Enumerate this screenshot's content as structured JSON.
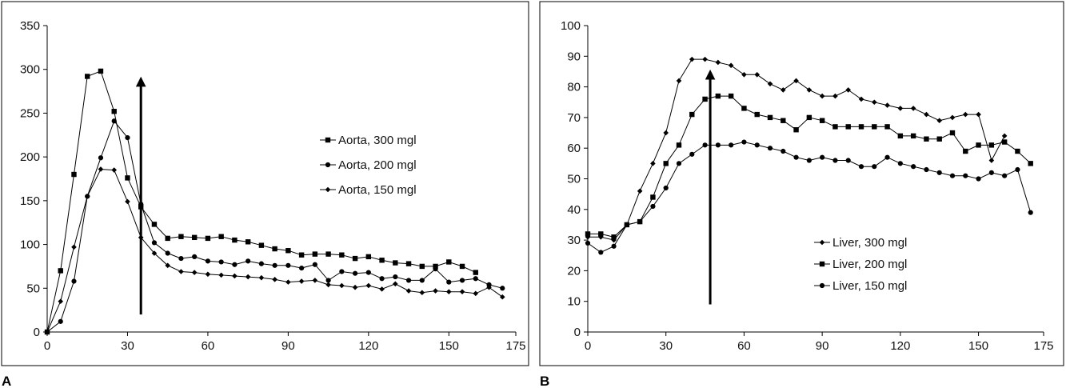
{
  "panels": [
    {
      "letter": "A",
      "chart_data": {
        "type": "line",
        "title": "",
        "xlabel": "",
        "ylabel": "",
        "xlim": [
          0,
          175
        ],
        "ylim": [
          0,
          350
        ],
        "xticks": [
          0,
          30,
          60,
          90,
          120,
          150,
          175
        ],
        "yticks": [
          0,
          50,
          100,
          150,
          200,
          250,
          300,
          350
        ],
        "grid": false,
        "legend_position": "right-center",
        "series": [
          {
            "name": "Aorta, 300 mgl",
            "marker": "square",
            "x": [
              0,
              5,
              10,
              15,
              20,
              25,
              30,
              35,
              40,
              45,
              50,
              55,
              60,
              65,
              70,
              75,
              80,
              85,
              90,
              95,
              100,
              105,
              110,
              115,
              120,
              125,
              130,
              135,
              140,
              145,
              150,
              155,
              160
            ],
            "y": [
              0,
              70,
              180,
              292,
              298,
              252,
              176,
              143,
              123,
              107,
              109,
              108,
              107,
              109,
              105,
              103,
              99,
              95,
              93,
              88,
              89,
              89,
              88,
              84,
              86,
              82,
              79,
              78,
              75,
              75,
              80,
              75,
              68
            ]
          },
          {
            "name": "Aorta, 200 mgl",
            "marker": "circle",
            "x": [
              0,
              5,
              10,
              15,
              20,
              25,
              30,
              35,
              40,
              45,
              50,
              55,
              60,
              65,
              70,
              75,
              80,
              85,
              90,
              95,
              100,
              105,
              110,
              115,
              120,
              125,
              130,
              135,
              140,
              145,
              150,
              155,
              160,
              165,
              170
            ],
            "y": [
              0,
              12,
              58,
              155,
              199,
              241,
              222,
              146,
              102,
              90,
              84,
              86,
              81,
              80,
              77,
              81,
              78,
              76,
              76,
              73,
              77,
              59,
              69,
              67,
              68,
              61,
              63,
              59,
              59,
              72,
              57,
              59,
              61,
              54,
              50
            ]
          },
          {
            "name": "Aorta, 150 mgl",
            "marker": "diamond",
            "x": [
              0,
              5,
              10,
              15,
              20,
              25,
              30,
              35,
              40,
              45,
              50,
              55,
              60,
              65,
              70,
              75,
              80,
              85,
              90,
              95,
              100,
              105,
              110,
              115,
              120,
              125,
              130,
              135,
              140,
              145,
              150,
              155,
              160,
              165,
              170
            ],
            "y": [
              0,
              35,
              97,
              155,
              186,
              185,
              149,
              108,
              90,
              76,
              69,
              68,
              66,
              65,
              64,
              63,
              62,
              60,
              57,
              58,
              59,
              54,
              53,
              51,
              53,
              49,
              55,
              47,
              45,
              47,
              46,
              46,
              44,
              51,
              40
            ]
          }
        ],
        "annotations": [
          {
            "type": "arrow",
            "x": 35,
            "y_from": 20,
            "y_to": 286
          }
        ]
      }
    },
    {
      "letter": "B",
      "chart_data": {
        "type": "line",
        "title": "",
        "xlabel": "",
        "ylabel": "",
        "xlim": [
          0,
          175
        ],
        "ylim": [
          0,
          100
        ],
        "xticks": [
          0,
          30,
          60,
          90,
          120,
          150,
          175
        ],
        "yticks": [
          0,
          10,
          20,
          30,
          40,
          50,
          60,
          70,
          80,
          90,
          100
        ],
        "grid": false,
        "legend_position": "bottom-right",
        "series": [
          {
            "name": "Liver, 300 mgl",
            "marker": "diamond",
            "x": [
              0,
              5,
              10,
              15,
              20,
              25,
              30,
              35,
              40,
              45,
              50,
              55,
              60,
              65,
              70,
              75,
              80,
              85,
              90,
              95,
              100,
              105,
              110,
              115,
              120,
              125,
              130,
              135,
              140,
              145,
              150,
              155,
              160
            ],
            "y": [
              31,
              31,
              30,
              35,
              46,
              55,
              65,
              82,
              89,
              89,
              88,
              87,
              84,
              84,
              81,
              79,
              82,
              79,
              77,
              77,
              79,
              76,
              75,
              74,
              73,
              73,
              71,
              69,
              70,
              71,
              71,
              56,
              64
            ]
          },
          {
            "name": "Liver, 200 mgl",
            "marker": "square",
            "x": [
              0,
              5,
              10,
              15,
              20,
              25,
              30,
              35,
              40,
              45,
              50,
              55,
              60,
              65,
              70,
              75,
              80,
              85,
              90,
              95,
              100,
              105,
              110,
              115,
              120,
              125,
              130,
              135,
              140,
              145,
              150,
              155,
              160,
              165,
              170
            ],
            "y": [
              32,
              32,
              31,
              35,
              36,
              44,
              55,
              61,
              71,
              76,
              77,
              77,
              73,
              71,
              70,
              69,
              66,
              70,
              69,
              67,
              67,
              67,
              67,
              67,
              64,
              64,
              63,
              63,
              65,
              59,
              61,
              61,
              62,
              59,
              55
            ]
          },
          {
            "name": "Liver, 150 mgl",
            "marker": "circle",
            "x": [
              0,
              5,
              10,
              15,
              20,
              25,
              30,
              35,
              40,
              45,
              50,
              55,
              60,
              65,
              70,
              75,
              80,
              85,
              90,
              95,
              100,
              105,
              110,
              115,
              120,
              125,
              130,
              135,
              140,
              145,
              150,
              155,
              160,
              165,
              170
            ],
            "y": [
              29,
              26,
              28,
              35,
              36,
              41,
              47,
              55,
              58,
              61,
              61,
              61,
              62,
              61,
              60,
              59,
              57,
              56,
              57,
              56,
              56,
              54,
              54,
              57,
              55,
              54,
              53,
              52,
              51,
              51,
              50,
              52,
              51,
              53,
              39
            ]
          }
        ],
        "annotations": [
          {
            "type": "arrow",
            "x": 47,
            "y_from": 9,
            "y_to": 84
          }
        ]
      }
    }
  ]
}
